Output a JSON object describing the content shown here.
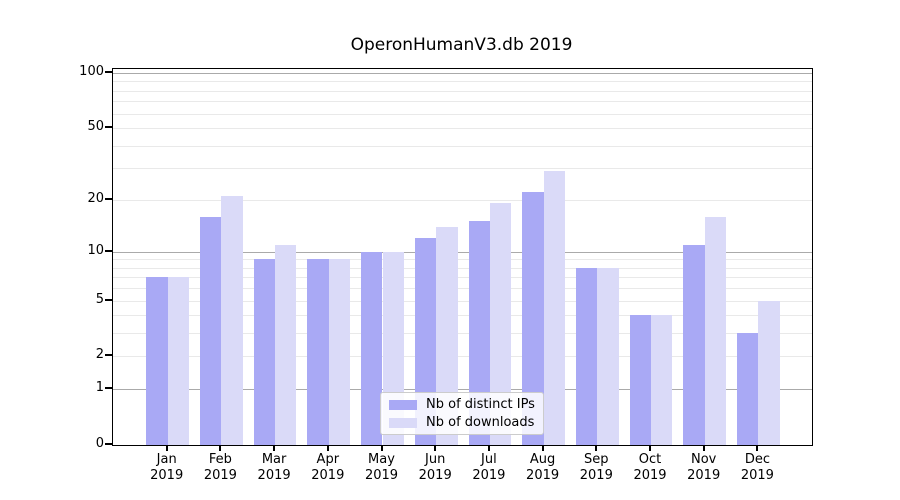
{
  "title": "OperonHumanV3.db 2019",
  "colors": {
    "ips_bar": "#a9a9f5",
    "downloads_bar": "#dadaf8",
    "grid_major": "#aaaaaa",
    "grid_minor": "#e9e9e9",
    "spine": "#000000",
    "legend_border": "#cccccc"
  },
  "chart_data": {
    "type": "bar",
    "title": "OperonHumanV3.db 2019",
    "categories": [
      "Jan 2019",
      "Feb 2019",
      "Mar 2019",
      "Apr 2019",
      "May 2019",
      "Jun 2019",
      "Jul 2019",
      "Aug 2019",
      "Sep 2019",
      "Oct 2019",
      "Nov 2019",
      "Dec 2019"
    ],
    "series": [
      {
        "name": "Nb of distinct IPs",
        "key": "distinct-ips",
        "color": "#a9a9f5",
        "values": [
          7,
          16,
          9,
          9,
          10,
          12,
          15,
          22,
          8,
          4,
          11,
          3
        ]
      },
      {
        "name": "Nb of downloads",
        "key": "downloads",
        "color": "#dadaf8",
        "values": [
          7,
          21,
          11,
          9,
          10,
          14,
          19,
          29,
          8,
          4,
          16,
          5
        ]
      }
    ],
    "xlabel": "",
    "ylabel": "",
    "yscale": "log1p",
    "ylim": [
      0,
      105
    ],
    "y_ticks": [
      0,
      1,
      2,
      5,
      10,
      20,
      50,
      100
    ],
    "y_major_gridlines": [
      1,
      10,
      100
    ],
    "y_minor_gridlines": [
      2,
      3,
      4,
      5,
      6,
      7,
      8,
      9,
      20,
      30,
      40,
      50,
      60,
      70,
      80,
      90
    ],
    "grid": "on",
    "legend_position": "lower center"
  }
}
